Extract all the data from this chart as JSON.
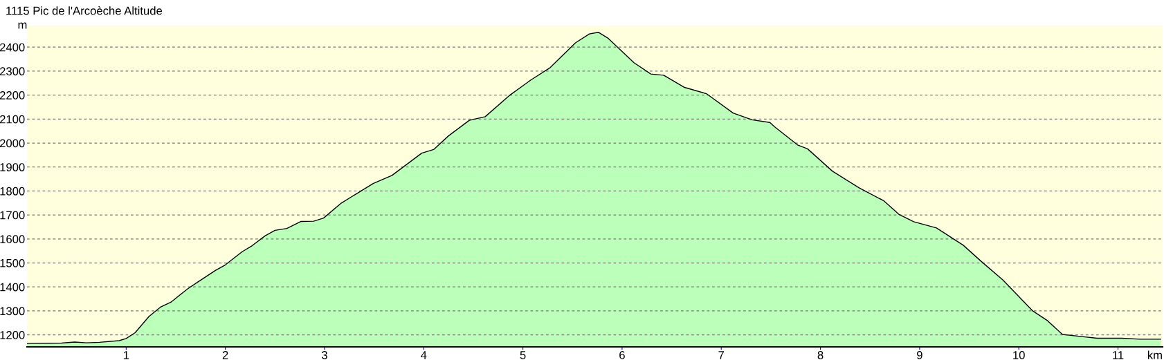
{
  "chart_data": {
    "type": "area",
    "title": "1115 Pic de l'Arcoèche Altitude",
    "xlabel": "km",
    "ylabel": "m",
    "x": [
      0,
      0.35,
      0.48,
      0.6,
      0.73,
      0.93,
      1.0,
      1.09,
      1.23,
      1.35,
      1.45,
      1.62,
      1.72,
      1.9,
      2.0,
      2.17,
      2.27,
      2.4,
      2.5,
      2.62,
      2.76,
      2.89,
      2.99,
      3.17,
      3.32,
      3.49,
      3.68,
      3.98,
      4.1,
      4.25,
      4.46,
      4.62,
      4.86,
      5.08,
      5.27,
      5.53,
      5.67,
      5.76,
      5.86,
      6.12,
      6.29,
      6.42,
      6.63,
      6.85,
      7.12,
      7.31,
      7.49,
      7.54,
      7.77,
      7.87,
      8.12,
      8.39,
      8.64,
      8.79,
      8.94,
      9.17,
      9.44,
      9.62,
      9.84,
      10.14,
      10.29,
      10.44,
      10.59,
      10.79,
      11.04,
      11.22,
      11.43
    ],
    "series": [
      {
        "color": "#bbffbb",
        "values": [
          1164,
          1166,
          1170,
          1167,
          1169,
          1176,
          1185,
          1209,
          1277,
          1317,
          1336,
          1392,
          1420,
          1469,
          1492,
          1547,
          1572,
          1613,
          1636,
          1644,
          1673,
          1674,
          1687,
          1750,
          1788,
          1831,
          1865,
          1958,
          1973,
          2030,
          2095,
          2110,
          2197,
          2263,
          2313,
          2418,
          2455,
          2462,
          2437,
          2335,
          2288,
          2283,
          2232,
          2206,
          2125,
          2097,
          2086,
          2067,
          1992,
          1976,
          1883,
          1813,
          1759,
          1703,
          1672,
          1646,
          1574,
          1507,
          1429,
          1300,
          1259,
          1202,
          1195,
          1186,
          1186,
          1182,
          1182
        ]
      }
    ],
    "xlim": [
      0,
      11.45
    ],
    "xticks": [
      1,
      2,
      3,
      4,
      5,
      6,
      7,
      8,
      9,
      10,
      11
    ],
    "ylim": [
      1150,
      2490
    ],
    "yticks": [
      1200,
      1300,
      1400,
      1500,
      1600,
      1700,
      1800,
      1900,
      2000,
      2100,
      2200,
      2300,
      2400
    ],
    "grid": "y",
    "line_style": "solid"
  }
}
